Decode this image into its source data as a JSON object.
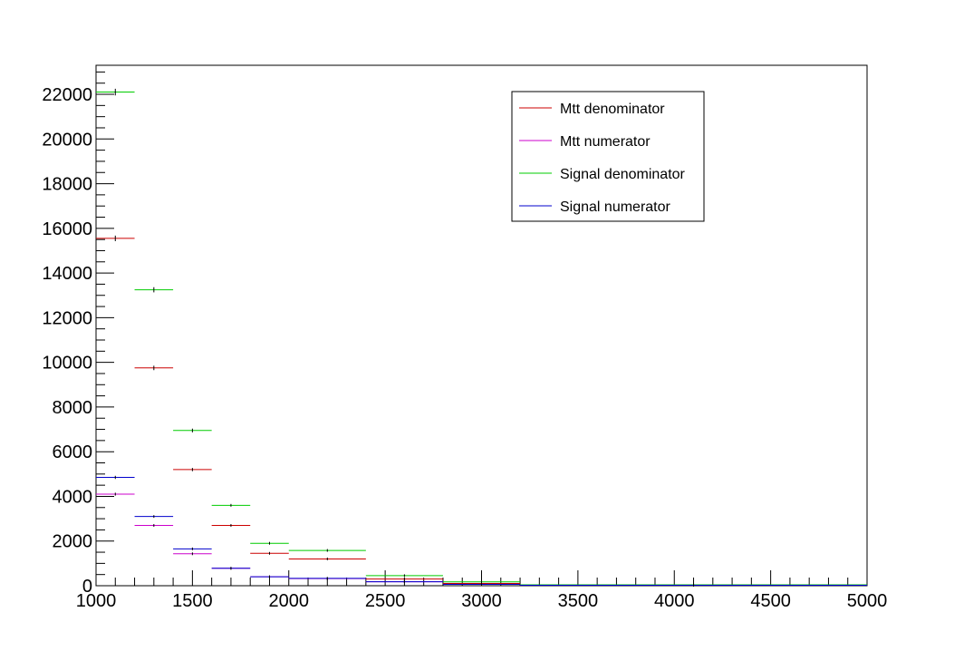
{
  "chart_data": {
    "type": "histogram",
    "title": "",
    "xlabel": "",
    "ylabel": "",
    "xlim": [
      1000,
      5000
    ],
    "ylim": [
      0,
      23300
    ],
    "grid": false,
    "legend_placement": "top-right",
    "x_ticks": [
      1000,
      1500,
      2000,
      2500,
      3000,
      3500,
      4000,
      4500,
      5000
    ],
    "x_tick_labels": [
      "1000",
      "1500",
      "2000",
      "2500",
      "3000",
      "3500",
      "4000",
      "4500",
      "5000"
    ],
    "y_ticks": [
      0,
      2000,
      4000,
      6000,
      8000,
      10000,
      12000,
      14000,
      16000,
      18000,
      20000,
      22000
    ],
    "y_tick_labels": [
      "0",
      "2000",
      "4000",
      "6000",
      "8000",
      "10000",
      "12000",
      "14000",
      "16000",
      "18000",
      "20000",
      "22000"
    ],
    "bin_edges": [
      1000,
      1200,
      1400,
      1600,
      1800,
      2000,
      2400,
      2800,
      3200,
      5000
    ],
    "series": [
      {
        "name": "Mtt denominator",
        "color": "#cc0000",
        "values": [
          15550,
          9750,
          5200,
          2700,
          1450,
          1200,
          300,
          100,
          30
        ]
      },
      {
        "name": "Mtt numerator",
        "color": "#cc00cc",
        "values": [
          4100,
          2700,
          1430,
          780,
          400,
          320,
          180,
          60,
          20
        ]
      },
      {
        "name": "Signal denominator",
        "color": "#00cc00",
        "values": [
          22100,
          13250,
          6950,
          3600,
          1900,
          1580,
          450,
          170,
          40
        ]
      },
      {
        "name": "Signal numerator",
        "color": "#0000cc",
        "values": [
          4850,
          3100,
          1650,
          780,
          400,
          330,
          180,
          60,
          20
        ]
      }
    ]
  }
}
